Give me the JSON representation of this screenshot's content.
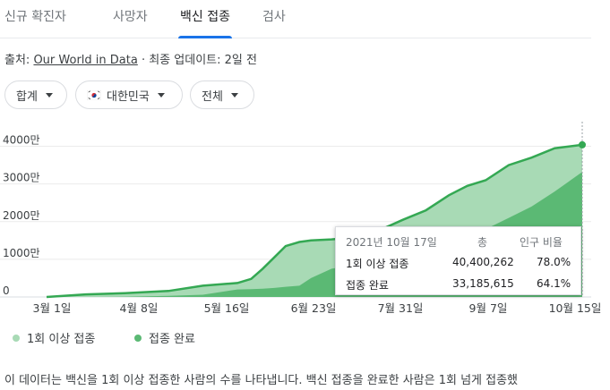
{
  "tabs": [
    "신규 확진자",
    "사망자",
    "백신 접종",
    "검사"
  ],
  "source": {
    "prefix": "출처:",
    "link": "Our World in Data",
    "suffix": "· 최종 업데이트: 2일 전"
  },
  "filters": {
    "metric": "합계",
    "country": "대한민국",
    "scope": "전체"
  },
  "tooltip": {
    "date": "2021년 10월 17일",
    "col_total": "총",
    "col_ratio": "인구 비율",
    "rows": [
      {
        "label": "1회 이상 접종",
        "total": "40,400,262",
        "ratio": "78.0%"
      },
      {
        "label": "접종 완료",
        "total": "33,185,615",
        "ratio": "64.1%"
      }
    ]
  },
  "legend": [
    "1회 이상 접종",
    "접종 완료"
  ],
  "note": "이 데이터는 백신을 1회 이상 접종한 사람의 수를 나타냅니다. 백신 접종을 완료한 사람은 1회 넘게 접종했",
  "colors": {
    "first_dose_line": "#34a853",
    "first_dose_fill": "#a8dab5",
    "full_fill": "#5bb974",
    "accent": "#1a73e8"
  },
  "chart_data": {
    "type": "area",
    "y_tick_labels": [
      "0",
      "1000만",
      "2000만",
      "3000만",
      "4000만"
    ],
    "ylim": [
      0,
      45000000
    ],
    "x_tick_labels": [
      "3월 1일",
      "4월 8일",
      "5월 16일",
      "6월 23일",
      "7월 31일",
      "9월 7일",
      "10월 15일"
    ],
    "x": [
      "2021-02-26",
      "2021-03-15",
      "2021-04-01",
      "2021-04-20",
      "2021-05-05",
      "2021-05-20",
      "2021-05-26",
      "2021-05-31",
      "2021-06-05",
      "2021-06-10",
      "2021-06-16",
      "2021-06-21",
      "2021-06-30",
      "2021-07-10",
      "2021-07-20",
      "2021-07-31",
      "2021-08-10",
      "2021-08-20",
      "2021-08-28",
      "2021-09-05",
      "2021-09-15",
      "2021-09-25",
      "2021-10-05",
      "2021-10-17"
    ],
    "series": [
      {
        "name": "1회 이상 접종",
        "values": [
          0,
          700000,
          1000000,
          1600000,
          3000000,
          3700000,
          4800000,
          7500000,
          10500000,
          13500000,
          14600000,
          15000000,
          15300000,
          15800000,
          17500000,
          20500000,
          23000000,
          27000000,
          29500000,
          31000000,
          35000000,
          37000000,
          39500000,
          40400262
        ]
      },
      {
        "name": "접종 완료",
        "values": [
          0,
          0,
          50000,
          300000,
          600000,
          2000000,
          2100000,
          2200000,
          2400000,
          2700000,
          3000000,
          5000000,
          7500000,
          8500000,
          10500000,
          12000000,
          12000000,
          14000000,
          16000000,
          18000000,
          21000000,
          24000000,
          28000000,
          33185615
        ]
      }
    ]
  }
}
